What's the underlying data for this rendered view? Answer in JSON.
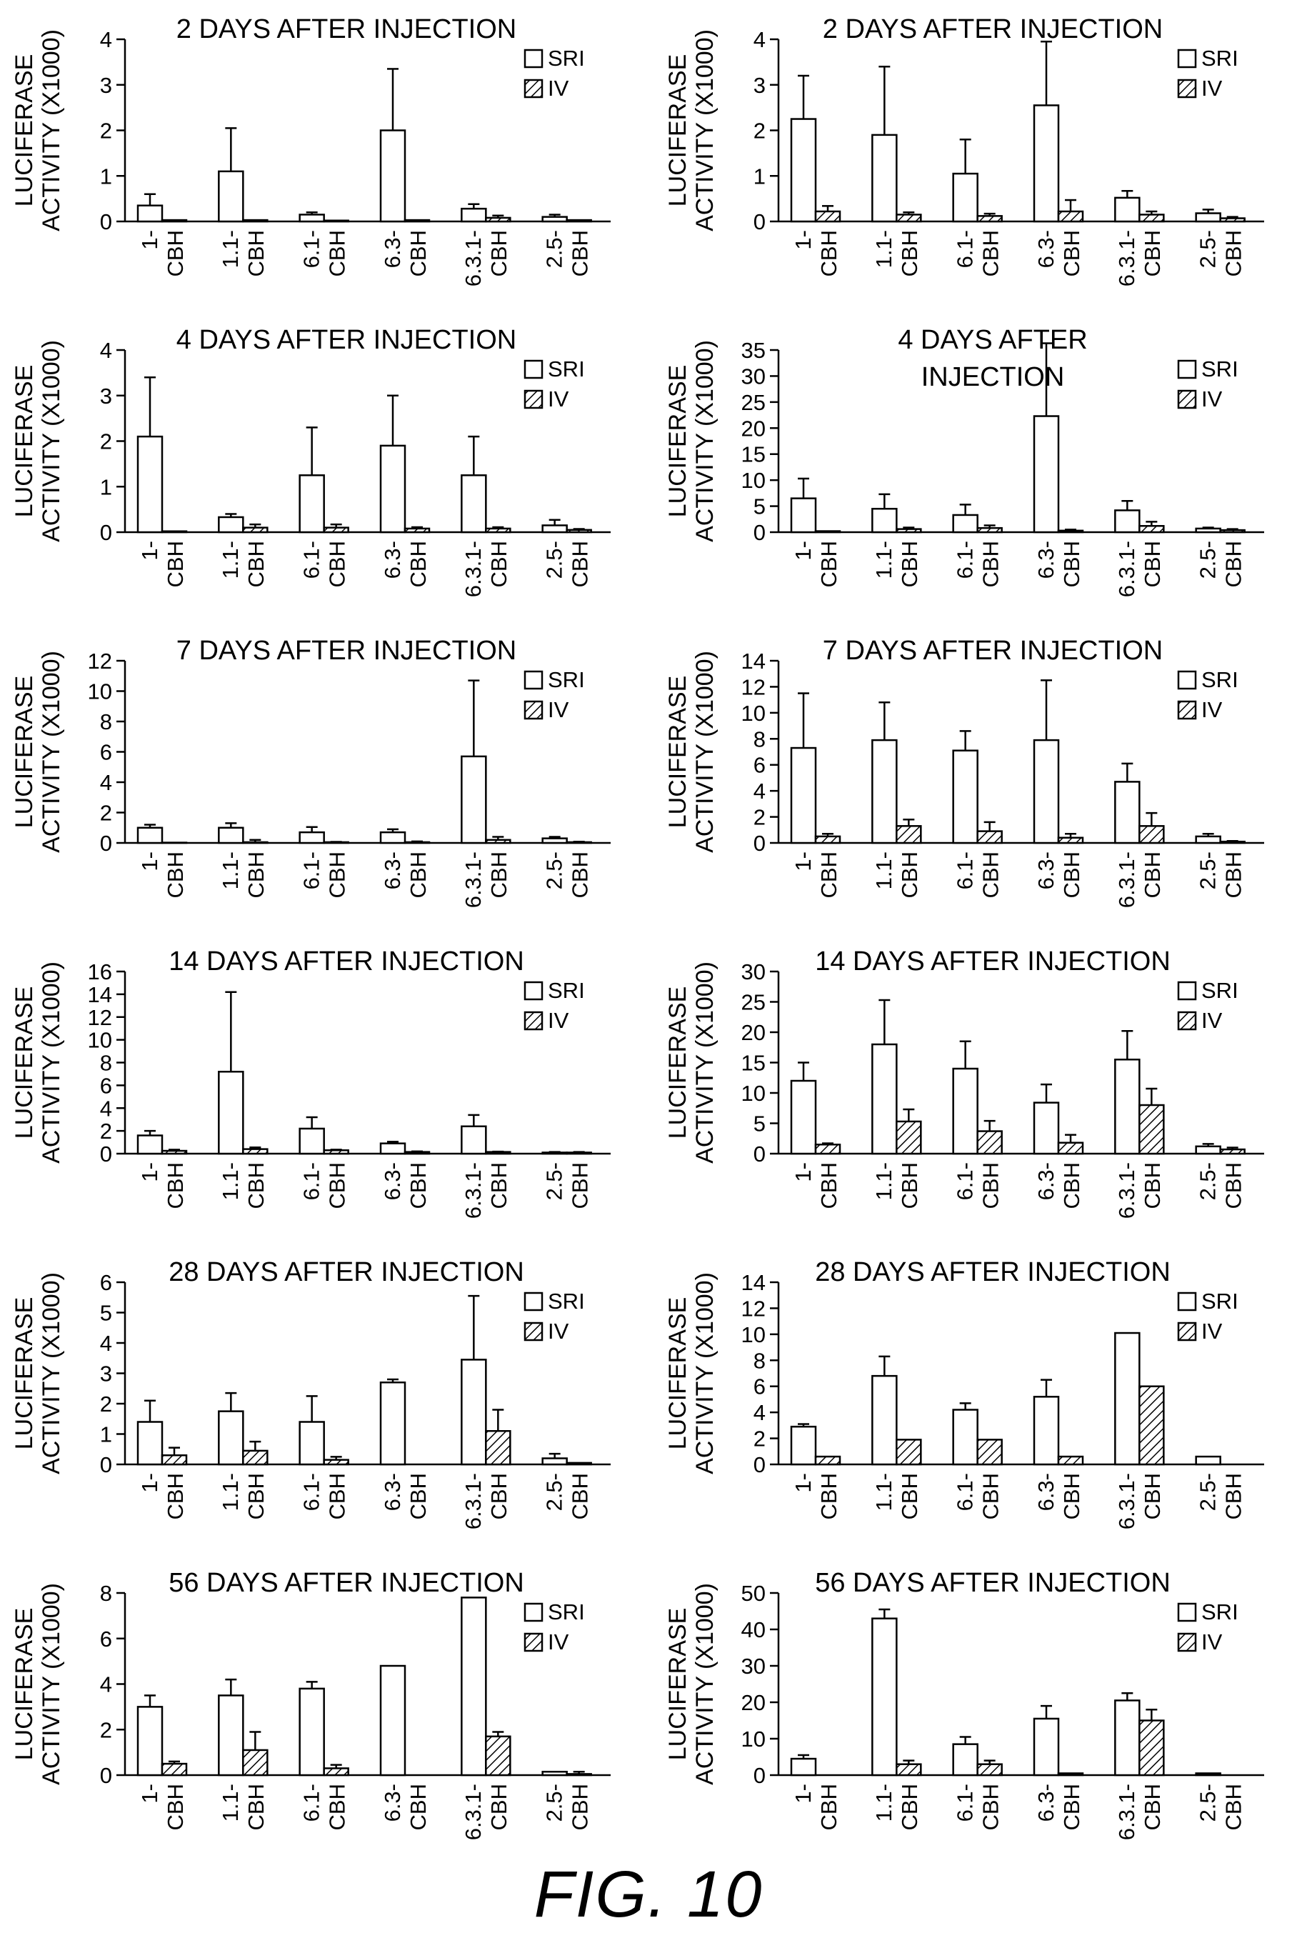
{
  "figure_label": "FIG. 10",
  "ylabel_lines": [
    "LUCIFERASE",
    "ACTIVITY (X1000)"
  ],
  "legend": [
    "SRI",
    "IV"
  ],
  "category_lines": [
    [
      "1-",
      "CBH"
    ],
    [
      "1.1-",
      "CBH"
    ],
    [
      "6.1-",
      "CBH"
    ],
    [
      "6.3-",
      "CBH"
    ],
    [
      "6.3.1-",
      "CBH"
    ],
    [
      "2.5-",
      "CBH"
    ]
  ],
  "chart_data": [
    {
      "type": "bar",
      "title_lines": [
        "2 DAYS AFTER INJECTION"
      ],
      "ylim": [
        0,
        4
      ],
      "yticks": [
        0,
        1,
        2,
        3,
        4
      ],
      "categories": [
        "1-CBH",
        "1.1-CBH",
        "6.1-CBH",
        "6.3-CBH",
        "6.3.1-CBH",
        "2.5-CBH"
      ],
      "series": [
        {
          "name": "SRI",
          "values": [
            0.35,
            1.1,
            0.15,
            2.0,
            0.28,
            0.1
          ],
          "errors": [
            0.25,
            0.95,
            0.05,
            1.35,
            0.1,
            0.05
          ]
        },
        {
          "name": "IV",
          "values": [
            0.03,
            0.03,
            0.02,
            0.03,
            0.08,
            0.03
          ],
          "errors": [
            0,
            0,
            0,
            0,
            0.05,
            0
          ]
        }
      ]
    },
    {
      "type": "bar",
      "title_lines": [
        "2 DAYS AFTER INJECTION"
      ],
      "ylim": [
        0,
        4
      ],
      "yticks": [
        0,
        1,
        2,
        3,
        4
      ],
      "categories": [
        "1-CBH",
        "1.1-CBH",
        "6.1-CBH",
        "6.3-CBH",
        "6.3.1-CBH",
        "2.5-CBH"
      ],
      "series": [
        {
          "name": "SRI",
          "values": [
            2.25,
            1.9,
            1.05,
            2.55,
            0.52,
            0.18
          ],
          "errors": [
            0.95,
            1.5,
            0.75,
            1.4,
            0.15,
            0.08
          ]
        },
        {
          "name": "IV",
          "values": [
            0.22,
            0.15,
            0.12,
            0.22,
            0.15,
            0.07
          ],
          "errors": [
            0.12,
            0.05,
            0.05,
            0.25,
            0.07,
            0.03
          ]
        }
      ]
    },
    {
      "type": "bar",
      "title_lines": [
        "4 DAYS AFTER INJECTION"
      ],
      "ylim": [
        0,
        4
      ],
      "yticks": [
        0,
        1,
        2,
        3,
        4
      ],
      "categories": [
        "1-CBH",
        "1.1-CBH",
        "6.1-CBH",
        "6.3-CBH",
        "6.3.1-CBH",
        "2.5-CBH"
      ],
      "series": [
        {
          "name": "SRI",
          "values": [
            2.1,
            0.33,
            1.25,
            1.9,
            1.25,
            0.15
          ],
          "errors": [
            1.3,
            0.07,
            1.05,
            1.1,
            0.85,
            0.12
          ]
        },
        {
          "name": "IV",
          "values": [
            0.02,
            0.1,
            0.1,
            0.08,
            0.08,
            0.05
          ],
          "errors": [
            0,
            0.07,
            0.07,
            0.03,
            0.03,
            0.02
          ]
        }
      ]
    },
    {
      "type": "bar",
      "title_lines": [
        "4 DAYS AFTER",
        "INJECTION"
      ],
      "ylim": [
        0,
        35
      ],
      "yticks": [
        0,
        5,
        10,
        15,
        20,
        25,
        30,
        35
      ],
      "categories": [
        "1-CBH",
        "1.1-CBH",
        "6.1-CBH",
        "6.3-CBH",
        "6.3.1-CBH",
        "2.5-CBH"
      ],
      "series": [
        {
          "name": "SRI",
          "values": [
            6.5,
            4.5,
            3.3,
            22.3,
            4.2,
            0.7
          ],
          "errors": [
            3.8,
            2.8,
            2.0,
            14.0,
            1.8,
            0.2
          ]
        },
        {
          "name": "IV",
          "values": [
            0.2,
            0.6,
            0.8,
            0.3,
            1.2,
            0.4
          ],
          "errors": [
            0,
            0.3,
            0.5,
            0.2,
            0.8,
            0.2
          ]
        }
      ]
    },
    {
      "type": "bar",
      "title_lines": [
        "7 DAYS AFTER INJECTION"
      ],
      "ylim": [
        0,
        12
      ],
      "yticks": [
        0,
        2,
        4,
        6,
        8,
        10,
        12
      ],
      "categories": [
        "1-CBH",
        "1.1-CBH",
        "6.1-CBH",
        "6.3-CBH",
        "6.3.1-CBH",
        "2.5-CBH"
      ],
      "series": [
        {
          "name": "SRI",
          "values": [
            1.0,
            1.0,
            0.7,
            0.7,
            5.7,
            0.3
          ],
          "errors": [
            0.2,
            0.3,
            0.35,
            0.2,
            5.0,
            0.1
          ]
        },
        {
          "name": "IV",
          "values": [
            0.02,
            0.05,
            0.05,
            0.05,
            0.2,
            0.05
          ],
          "errors": [
            0,
            0.15,
            0.02,
            0.05,
            0.2,
            0.03
          ]
        }
      ]
    },
    {
      "type": "bar",
      "title_lines": [
        "7 DAYS AFTER INJECTION"
      ],
      "ylim": [
        0,
        14
      ],
      "yticks": [
        0,
        2,
        4,
        6,
        8,
        10,
        12,
        14
      ],
      "categories": [
        "1-CBH",
        "1.1-CBH",
        "6.1-CBH",
        "6.3-CBH",
        "6.3.1-CBH",
        "2.5-CBH"
      ],
      "series": [
        {
          "name": "SRI",
          "values": [
            7.3,
            7.9,
            7.1,
            7.9,
            4.7,
            0.5
          ],
          "errors": [
            4.2,
            2.9,
            1.5,
            4.6,
            1.4,
            0.2
          ]
        },
        {
          "name": "IV",
          "values": [
            0.5,
            1.3,
            0.9,
            0.4,
            1.3,
            0.1
          ],
          "errors": [
            0.2,
            0.5,
            0.7,
            0.3,
            1.0,
            0.05
          ]
        }
      ]
    },
    {
      "type": "bar",
      "title_lines": [
        "14 DAYS AFTER INJECTION"
      ],
      "ylim": [
        0,
        16
      ],
      "yticks": [
        0,
        2,
        4,
        6,
        8,
        10,
        12,
        14,
        16
      ],
      "categories": [
        "1-CBH",
        "1.1-CBH",
        "6.1-CBH",
        "6.3-CBH",
        "6.3.1-CBH",
        "2.5-CBH"
      ],
      "series": [
        {
          "name": "SRI",
          "values": [
            1.6,
            7.2,
            2.2,
            0.9,
            2.4,
            0.1
          ],
          "errors": [
            0.4,
            7.0,
            1.0,
            0.15,
            1.0,
            0.05
          ]
        },
        {
          "name": "IV",
          "values": [
            0.25,
            0.4,
            0.3,
            0.15,
            0.15,
            0.1
          ],
          "errors": [
            0.1,
            0.15,
            0.05,
            0.05,
            0.03,
            0.05
          ]
        }
      ]
    },
    {
      "type": "bar",
      "title_lines": [
        "14 DAYS AFTER INJECTION"
      ],
      "ylim": [
        0,
        30
      ],
      "yticks": [
        0,
        5,
        10,
        15,
        20,
        25,
        30
      ],
      "categories": [
        "1-CBH",
        "1.1-CBH",
        "6.1-CBH",
        "6.3-CBH",
        "6.3.1-CBH",
        "2.5-CBH"
      ],
      "series": [
        {
          "name": "SRI",
          "values": [
            12,
            18,
            14,
            8.4,
            15.5,
            1.2
          ],
          "errors": [
            3,
            7.3,
            4.5,
            3.0,
            4.7,
            0.4
          ]
        },
        {
          "name": "IV",
          "values": [
            1.5,
            5.3,
            3.7,
            1.8,
            8,
            0.7
          ],
          "errors": [
            0.2,
            2.0,
            1.7,
            1.3,
            2.7,
            0.3
          ]
        }
      ]
    },
    {
      "type": "bar",
      "title_lines": [
        "28 DAYS AFTER INJECTION"
      ],
      "ylim": [
        0,
        6
      ],
      "yticks": [
        0,
        1,
        2,
        3,
        4,
        5,
        6
      ],
      "categories": [
        "1-CBH",
        "1.1-CBH",
        "6.1-CBH",
        "6.3-CBH",
        "6.3.1-CBH",
        "2.5-CBH"
      ],
      "series": [
        {
          "name": "SRI",
          "values": [
            1.4,
            1.75,
            1.4,
            2.7,
            3.45,
            0.2
          ],
          "errors": [
            0.7,
            0.6,
            0.85,
            0.1,
            2.1,
            0.15
          ]
        },
        {
          "name": "IV",
          "values": [
            0.3,
            0.45,
            0.15,
            0,
            1.1,
            0.05
          ],
          "errors": [
            0.25,
            0.3,
            0.1,
            0,
            0.7,
            0
          ]
        }
      ]
    },
    {
      "type": "bar",
      "title_lines": [
        "28 DAYS AFTER INJECTION"
      ],
      "ylim": [
        0,
        14
      ],
      "yticks": [
        0,
        2,
        4,
        6,
        8,
        10,
        12,
        14
      ],
      "categories": [
        "1-CBH",
        "1.1-CBH",
        "6.1-CBH",
        "6.3-CBH",
        "6.3.1-CBH",
        "2.5-CBH"
      ],
      "series": [
        {
          "name": "SRI",
          "values": [
            2.9,
            6.8,
            4.2,
            5.2,
            10.1,
            0.6
          ],
          "errors": [
            0.2,
            1.5,
            0.5,
            1.3,
            0,
            0
          ]
        },
        {
          "name": "IV",
          "values": [
            0.6,
            1.9,
            1.9,
            0.6,
            6,
            0
          ],
          "errors": [
            0,
            0,
            0,
            0,
            0,
            0
          ]
        }
      ]
    },
    {
      "type": "bar",
      "title_lines": [
        "56 DAYS AFTER INJECTION"
      ],
      "ylim": [
        0,
        8
      ],
      "yticks": [
        0,
        2,
        4,
        6,
        8
      ],
      "categories": [
        "1-CBH",
        "1.1-CBH",
        "6.1-CBH",
        "6.3-CBH",
        "6.3.1-CBH",
        "2.5-CBH"
      ],
      "series": [
        {
          "name": "SRI",
          "values": [
            3.0,
            3.5,
            3.8,
            4.8,
            7.8,
            0.15
          ],
          "errors": [
            0.5,
            0.7,
            0.3,
            0,
            0,
            0
          ]
        },
        {
          "name": "IV",
          "values": [
            0.5,
            1.1,
            0.3,
            0,
            1.7,
            0.05
          ],
          "errors": [
            0.1,
            0.8,
            0.15,
            0,
            0.2,
            0.1
          ]
        }
      ]
    },
    {
      "type": "bar",
      "title_lines": [
        "56 DAYS AFTER INJECTION"
      ],
      "ylim": [
        0,
        50
      ],
      "yticks": [
        0,
        10,
        20,
        30,
        40,
        50
      ],
      "categories": [
        "1-CBH",
        "1.1-CBH",
        "6.1-CBH",
        "6.3-CBH",
        "6.3.1-CBH",
        "2.5-CBH"
      ],
      "series": [
        {
          "name": "SRI",
          "values": [
            4.5,
            43,
            8.5,
            15.5,
            20.5,
            0.5
          ],
          "errors": [
            1,
            2.5,
            2,
            3.5,
            2,
            0
          ]
        },
        {
          "name": "IV",
          "values": [
            0,
            3,
            3,
            0.5,
            15,
            0
          ],
          "errors": [
            0,
            1,
            1,
            0,
            3,
            0
          ]
        }
      ]
    }
  ]
}
